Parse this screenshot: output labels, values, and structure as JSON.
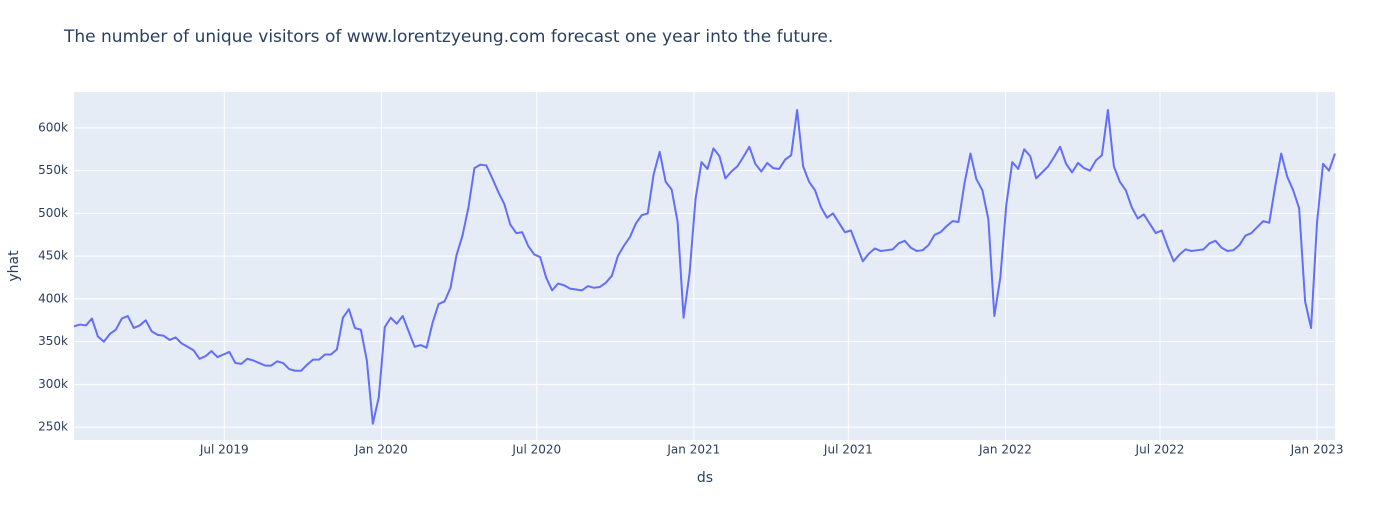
{
  "chart_data": {
    "type": "line",
    "title": "The number of unique visitors of www.lorentzyeung.com forecast one year into the future.",
    "x_label": "ds",
    "y_label": "yhat",
    "x": [
      "2019-01-06",
      "2019-01-13",
      "2019-01-20",
      "2019-01-27",
      "2019-02-03",
      "2019-02-10",
      "2019-02-17",
      "2019-02-24",
      "2019-03-03",
      "2019-03-10",
      "2019-03-17",
      "2019-03-24",
      "2019-03-31",
      "2019-04-07",
      "2019-04-14",
      "2019-04-21",
      "2019-04-28",
      "2019-05-05",
      "2019-05-12",
      "2019-05-19",
      "2019-05-26",
      "2019-06-02",
      "2019-06-09",
      "2019-06-16",
      "2019-06-23",
      "2019-06-30",
      "2019-07-07",
      "2019-07-14",
      "2019-07-21",
      "2019-07-28",
      "2019-08-04",
      "2019-08-11",
      "2019-08-18",
      "2019-08-25",
      "2019-09-01",
      "2019-09-08",
      "2019-09-15",
      "2019-09-22",
      "2019-09-29",
      "2019-10-06",
      "2019-10-13",
      "2019-10-20",
      "2019-10-27",
      "2019-11-03",
      "2019-11-10",
      "2019-11-17",
      "2019-11-24",
      "2019-12-01",
      "2019-12-08",
      "2019-12-15",
      "2019-12-22",
      "2019-12-29",
      "2020-01-05",
      "2020-01-12",
      "2020-01-19",
      "2020-01-26",
      "2020-02-02",
      "2020-02-09",
      "2020-02-16",
      "2020-02-23",
      "2020-03-01",
      "2020-03-08",
      "2020-03-15",
      "2020-03-22",
      "2020-03-29",
      "2020-04-05",
      "2020-04-12",
      "2020-04-19",
      "2020-04-26",
      "2020-05-03",
      "2020-05-10",
      "2020-05-17",
      "2020-05-24",
      "2020-05-31",
      "2020-06-07",
      "2020-06-14",
      "2020-06-21",
      "2020-06-28",
      "2020-07-05",
      "2020-07-12",
      "2020-07-19",
      "2020-07-26",
      "2020-08-02",
      "2020-08-09",
      "2020-08-16",
      "2020-08-23",
      "2020-08-30",
      "2020-09-06",
      "2020-09-13",
      "2020-09-20",
      "2020-09-27",
      "2020-10-04",
      "2020-10-11",
      "2020-10-18",
      "2020-10-25",
      "2020-11-01",
      "2020-11-08",
      "2020-11-15",
      "2020-11-22",
      "2020-11-29",
      "2020-12-06",
      "2020-12-13",
      "2020-12-20",
      "2020-12-27",
      "2021-01-03",
      "2021-01-10",
      "2021-01-17",
      "2021-01-24",
      "2021-01-31",
      "2021-02-07",
      "2021-02-14",
      "2021-02-21",
      "2021-02-28",
      "2021-03-07",
      "2021-03-14",
      "2021-03-21",
      "2021-03-28",
      "2021-04-04",
      "2021-04-11",
      "2021-04-18",
      "2021-04-25",
      "2021-05-02",
      "2021-05-09",
      "2021-05-16",
      "2021-05-23",
      "2021-05-30",
      "2021-06-06",
      "2021-06-13",
      "2021-06-20",
      "2021-06-27",
      "2021-07-04",
      "2021-07-11",
      "2021-07-18",
      "2021-07-25",
      "2021-08-01",
      "2021-08-08",
      "2021-08-15",
      "2021-08-22",
      "2021-08-29",
      "2021-09-05",
      "2021-09-12",
      "2021-09-19",
      "2021-09-26",
      "2021-10-03",
      "2021-10-10",
      "2021-10-17",
      "2021-10-24",
      "2021-10-31",
      "2021-11-07",
      "2021-11-14",
      "2021-11-21",
      "2021-11-28",
      "2021-12-05",
      "2021-12-12",
      "2021-12-19",
      "2021-12-26",
      "2022-01-02",
      "2022-01-09",
      "2022-01-16",
      "2022-01-23",
      "2022-01-30",
      "2022-02-06",
      "2022-02-13",
      "2022-02-20",
      "2022-02-27",
      "2022-03-06",
      "2022-03-13",
      "2022-03-20",
      "2022-03-27",
      "2022-04-03",
      "2022-04-10",
      "2022-04-17",
      "2022-04-24",
      "2022-05-01",
      "2022-05-08",
      "2022-05-15",
      "2022-05-22",
      "2022-05-29",
      "2022-06-05",
      "2022-06-12",
      "2022-06-19",
      "2022-06-26",
      "2022-07-03",
      "2022-07-10",
      "2022-07-17",
      "2022-07-24",
      "2022-07-31",
      "2022-08-07",
      "2022-08-14",
      "2022-08-21",
      "2022-08-28",
      "2022-09-04",
      "2022-09-11",
      "2022-09-18",
      "2022-09-25",
      "2022-10-02",
      "2022-10-09",
      "2022-10-16",
      "2022-10-23",
      "2022-10-30",
      "2022-11-06",
      "2022-11-13",
      "2022-11-20",
      "2022-11-27",
      "2022-12-04",
      "2022-12-11",
      "2022-12-18",
      "2022-12-25",
      "2023-01-01",
      "2023-01-08",
      "2023-01-15",
      "2023-01-22"
    ],
    "series": [
      {
        "name": "yhat",
        "color": "#636efa",
        "values": [
          368000,
          370000,
          369000,
          377000,
          356000,
          350000,
          359000,
          364000,
          377000,
          380000,
          366000,
          369000,
          375000,
          362000,
          358000,
          357000,
          352000,
          355000,
          348000,
          344000,
          340000,
          330000,
          333000,
          339000,
          332000,
          335000,
          338000,
          325000,
          324000,
          330000,
          328000,
          325000,
          322000,
          322000,
          327000,
          325000,
          318000,
          316000,
          316000,
          323000,
          329000,
          329000,
          335000,
          335000,
          341000,
          378000,
          388000,
          366000,
          364000,
          328000,
          254000,
          285000,
          367000,
          378000,
          371000,
          380000,
          362000,
          344000,
          346000,
          343000,
          372000,
          394000,
          397000,
          413000,
          451000,
          474000,
          507000,
          553000,
          557000,
          556000,
          541000,
          525000,
          511000,
          487000,
          477000,
          478000,
          462000,
          452000,
          449000,
          425000,
          410000,
          418000,
          416000,
          412000,
          411000,
          410000,
          415000,
          413000,
          414000,
          419000,
          427000,
          450000,
          462000,
          472000,
          488000,
          498000,
          500000,
          546000,
          572000,
          537000,
          528000,
          490000,
          378000,
          430000,
          517000,
          560000,
          552000,
          576000,
          567000,
          541000,
          549000,
          555000,
          566000,
          578000,
          558000,
          549000,
          559000,
          553000,
          552000,
          563000,
          568000,
          621000,
          555000,
          537000,
          527000,
          507000,
          495000,
          500000,
          489000,
          478000,
          480000,
          462000,
          444000,
          453000,
          459000,
          456000,
          457000,
          458000,
          465000,
          468000,
          460000,
          456000,
          457000,
          463000,
          475000,
          478000,
          485000,
          491000,
          490000,
          535000,
          570000,
          540000,
          527000,
          493000,
          380000,
          425000,
          510000,
          560000,
          552000,
          575000,
          567000,
          541000,
          548000,
          555000,
          566000,
          578000,
          558000,
          548000,
          559000,
          553000,
          550000,
          562000,
          568000,
          621000,
          555000,
          537000,
          527000,
          507000,
          494000,
          499000,
          488000,
          477000,
          480000,
          461000,
          444000,
          452000,
          458000,
          456000,
          457000,
          458000,
          465000,
          468000,
          460000,
          456000,
          457000,
          463000,
          474000,
          477000,
          484000,
          491000,
          489000,
          532000,
          570000,
          543000,
          527000,
          506000,
          397000,
          366000,
          490000,
          558000,
          550000,
          570000
        ]
      }
    ],
    "xlim": [
      "2019-01-06",
      "2023-01-22"
    ],
    "xticks": [
      {
        "value": "2019-07-01",
        "label": "Jul 2019"
      },
      {
        "value": "2020-01-01",
        "label": "Jan 2020"
      },
      {
        "value": "2020-07-01",
        "label": "Jul 2020"
      },
      {
        "value": "2021-01-01",
        "label": "Jan 2021"
      },
      {
        "value": "2021-07-01",
        "label": "Jul 2021"
      },
      {
        "value": "2022-01-01",
        "label": "Jan 2022"
      },
      {
        "value": "2022-07-01",
        "label": "Jul 2022"
      },
      {
        "value": "2023-01-01",
        "label": "Jan 2023"
      }
    ],
    "ylim": [
      235000,
      642000
    ],
    "yticks": [
      {
        "value": 250000,
        "label": "250k"
      },
      {
        "value": 300000,
        "label": "300k"
      },
      {
        "value": 350000,
        "label": "350k"
      },
      {
        "value": 400000,
        "label": "400k"
      },
      {
        "value": 450000,
        "label": "450k"
      },
      {
        "value": 500000,
        "label": "500k"
      },
      {
        "value": 550000,
        "label": "550k"
      },
      {
        "value": 600000,
        "label": "600k"
      }
    ],
    "grid": true
  }
}
